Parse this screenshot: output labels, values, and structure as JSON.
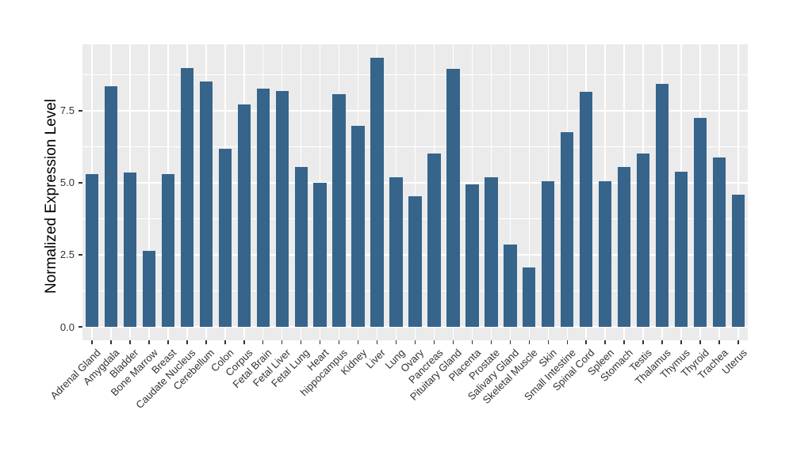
{
  "chart_data": {
    "type": "bar",
    "title": "",
    "xlabel": "",
    "ylabel": "Normalized Expression Level",
    "categories": [
      "Adrenal Gland",
      "Amygdala",
      "Bladder",
      "Bone Marrow",
      "Breast",
      "Caudate Nucleus",
      "Cerebellum",
      "Colon",
      "Corpus",
      "Fetal Brain",
      "Fetal Liver",
      "Fetal Lung",
      "Heart",
      "hippocampus",
      "Kidney",
      "Liver",
      "Lung",
      "Ovary",
      "Pancreas",
      "Pituitary Gland",
      "Placenta",
      "Prostate",
      "Salivary Gland",
      "Skeletal Muscle",
      "Skin",
      "Small Intestine",
      "Spinal Cord",
      "Spleen",
      "Stomach",
      "Testis",
      "Thalamus",
      "Thymus",
      "Thyroid",
      "Trachea",
      "Uterus"
    ],
    "values": [
      5.3,
      8.35,
      5.36,
      2.64,
      5.3,
      8.98,
      8.52,
      6.18,
      7.72,
      8.27,
      8.18,
      5.55,
      5.0,
      8.08,
      6.98,
      9.34,
      5.19,
      4.53,
      6.02,
      8.96,
      4.95,
      5.19,
      2.86,
      2.06,
      5.05,
      6.76,
      8.16,
      5.05,
      5.55,
      6.02,
      8.43,
      5.39,
      7.25,
      5.88,
      4.59
    ],
    "ylim": [
      -0.467,
      9.807
    ],
    "yticks": [
      0.0,
      2.5,
      5.0,
      7.5
    ],
    "ytick_labels": [
      "0.0",
      "2.5",
      "5.0",
      "7.5"
    ],
    "yticks_minor": [
      1.25,
      3.75,
      6.25,
      8.75
    ],
    "grid": true,
    "legend": "none",
    "x_label_angle": 45,
    "colors": {
      "bar_fill": "#36648B",
      "panel_background": "#EBEBEB",
      "gridline": "#FFFFFF",
      "tick_mark": "#333333",
      "axis_text": "#333333",
      "axis_title": "#000000",
      "figure_background": "#FFFFFF"
    }
  }
}
